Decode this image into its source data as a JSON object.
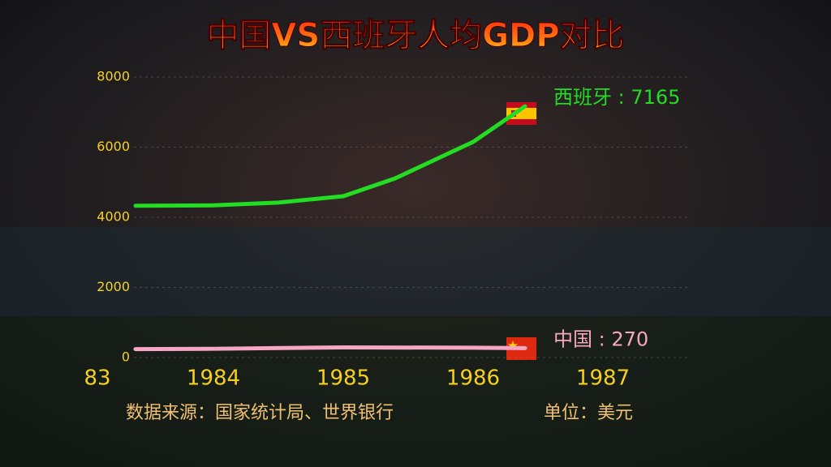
{
  "chart_data": {
    "type": "line",
    "title": "中国VS西班牙人均GDP对比",
    "source": "数据来源：国家统计局、世界银行",
    "unit": "单位：美元",
    "xlim": [
      1983,
      1987
    ],
    "xticks": [
      {
        "value": 1983,
        "label": "83"
      },
      1984,
      1985,
      1986,
      1987
    ],
    "ylim": [
      0,
      8000
    ],
    "yticks": [
      0,
      2000,
      4000,
      6000,
      8000
    ],
    "grid": true,
    "series": [
      {
        "name": "西班牙",
        "label": "西班牙 : 7165",
        "color": "#22dd22",
        "x": [
          1983.4,
          1984,
          1984.5,
          1985,
          1985.4,
          1986,
          1986.4
        ],
        "values": [
          4330,
          4340,
          4420,
          4600,
          5110,
          6150,
          7165
        ]
      },
      {
        "name": "中国",
        "label": "中国 : 270",
        "color": "#f7a6c4",
        "x": [
          1983.4,
          1984,
          1985,
          1986,
          1986.4
        ],
        "values": [
          240,
          250,
          290,
          280,
          270
        ]
      }
    ]
  }
}
